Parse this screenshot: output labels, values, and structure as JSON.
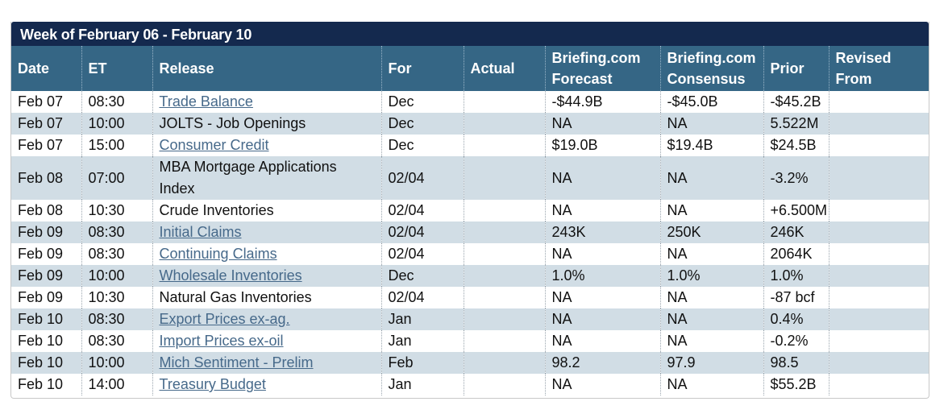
{
  "calendar": {
    "week_title": "Week of February 06 - February 10",
    "headers": {
      "date": "Date",
      "et": "ET",
      "release": "Release",
      "for": "For",
      "actual": "Actual",
      "forecast_line1": "Briefing.com",
      "forecast_line2": "Forecast",
      "consensus_line1": "Briefing.com",
      "consensus_line2": "Consensus",
      "prior": "Prior",
      "revised_line1": "Revised",
      "revised_line2": "From"
    },
    "rows": [
      {
        "date": "Feb 07",
        "et": "08:30",
        "release": "Trade Balance",
        "link": true,
        "for": "Dec",
        "actual": "",
        "forecast": "-$44.9B",
        "consensus": "-$45.0B",
        "prior": "-$45.2B",
        "revised": ""
      },
      {
        "date": "Feb 07",
        "et": "10:00",
        "release": "JOLTS - Job Openings",
        "link": false,
        "for": "Dec",
        "actual": "",
        "forecast": "NA",
        "consensus": "NA",
        "prior": "5.522M",
        "revised": ""
      },
      {
        "date": "Feb 07",
        "et": "15:00",
        "release": "Consumer Credit",
        "link": true,
        "for": "Dec",
        "actual": "",
        "forecast": "$19.0B",
        "consensus": "$19.4B",
        "prior": "$24.5B",
        "revised": ""
      },
      {
        "date": "Feb 08",
        "et": "07:00",
        "release": "MBA Mortgage Applications Index",
        "link": false,
        "for": "02/04",
        "actual": "",
        "forecast": "NA",
        "consensus": "NA",
        "prior": "-3.2%",
        "revised": ""
      },
      {
        "date": "Feb 08",
        "et": "10:30",
        "release": "Crude Inventories",
        "link": false,
        "for": "02/04",
        "actual": "",
        "forecast": "NA",
        "consensus": "NA",
        "prior": "+6.500M",
        "revised": ""
      },
      {
        "date": "Feb 09",
        "et": "08:30",
        "release": "Initial Claims",
        "link": true,
        "for": "02/04",
        "actual": "",
        "forecast": "243K",
        "consensus": "250K",
        "prior": "246K",
        "revised": ""
      },
      {
        "date": "Feb 09",
        "et": "08:30",
        "release": "Continuing Claims",
        "link": true,
        "for": "02/04",
        "actual": "",
        "forecast": "NA",
        "consensus": "NA",
        "prior": "2064K",
        "revised": ""
      },
      {
        "date": "Feb 09",
        "et": "10:00",
        "release": "Wholesale Inventories",
        "link": true,
        "for": "Dec",
        "actual": "",
        "forecast": "1.0%",
        "consensus": "1.0%",
        "prior": "1.0%",
        "revised": ""
      },
      {
        "date": "Feb 09",
        "et": "10:30",
        "release": "Natural Gas Inventories",
        "link": false,
        "for": "02/04",
        "actual": "",
        "forecast": "NA",
        "consensus": "NA",
        "prior": "-87 bcf",
        "revised": ""
      },
      {
        "date": "Feb 10",
        "et": "08:30",
        "release": "Export Prices ex-ag.",
        "link": true,
        "for": "Jan",
        "actual": "",
        "forecast": "NA",
        "consensus": "NA",
        "prior": "0.4%",
        "revised": ""
      },
      {
        "date": "Feb 10",
        "et": "08:30",
        "release": "Import Prices ex-oil",
        "link": true,
        "for": "Jan",
        "actual": "",
        "forecast": "NA",
        "consensus": "NA",
        "prior": "-0.2%",
        "revised": ""
      },
      {
        "date": "Feb 10",
        "et": "10:00",
        "release": "Mich Sentiment - Prelim",
        "link": true,
        "for": "Feb",
        "actual": "",
        "forecast": "98.2",
        "consensus": "97.9",
        "prior": "98.5",
        "revised": ""
      },
      {
        "date": "Feb 10",
        "et": "14:00",
        "release": "Treasury Budget",
        "link": true,
        "for": "Jan",
        "actual": "",
        "forecast": "NA",
        "consensus": "NA",
        "prior": "$55.2B",
        "revised": ""
      }
    ]
  }
}
